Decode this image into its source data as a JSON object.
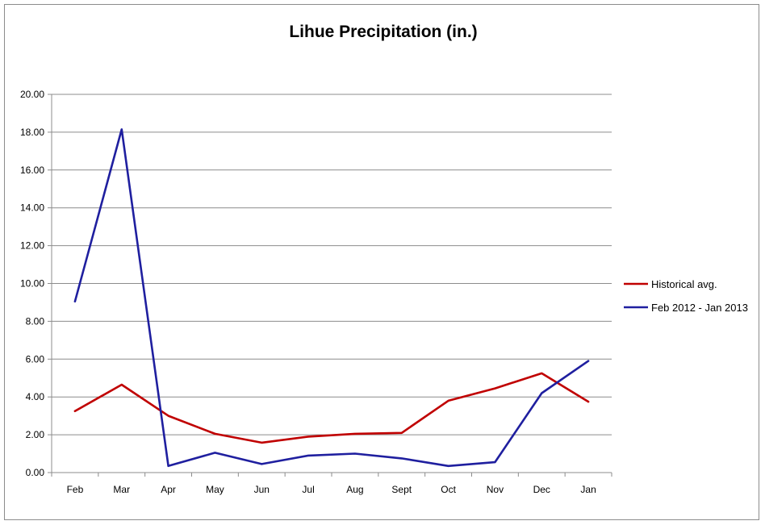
{
  "chart_data": {
    "type": "line",
    "title": "Lihue Precipitation (in.)",
    "xlabel": "",
    "ylabel": "",
    "categories": [
      "Feb",
      "Mar",
      "Apr",
      "May",
      "Jun",
      "Jul",
      "Aug",
      "Sept",
      "Oct",
      "Nov",
      "Dec",
      "Jan"
    ],
    "ylim": [
      0,
      20
    ],
    "yticks": [
      "0.00",
      "2.00",
      "4.00",
      "6.00",
      "8.00",
      "10.00",
      "12.00",
      "14.00",
      "16.00",
      "18.00",
      "20.00"
    ],
    "grid": true,
    "legend": "right",
    "series": [
      {
        "name": "Historical avg.",
        "color": "#C00000",
        "values": [
          3.25,
          4.65,
          3.0,
          2.05,
          1.58,
          1.9,
          2.05,
          2.1,
          3.8,
          4.45,
          5.25,
          3.75
        ]
      },
      {
        "name": "Feb 2012 - Jan 2013",
        "color": "#1F1F9F",
        "values": [
          9.05,
          18.15,
          0.35,
          1.05,
          0.45,
          0.9,
          1.0,
          0.75,
          0.35,
          0.55,
          4.2,
          5.9
        ]
      }
    ]
  }
}
